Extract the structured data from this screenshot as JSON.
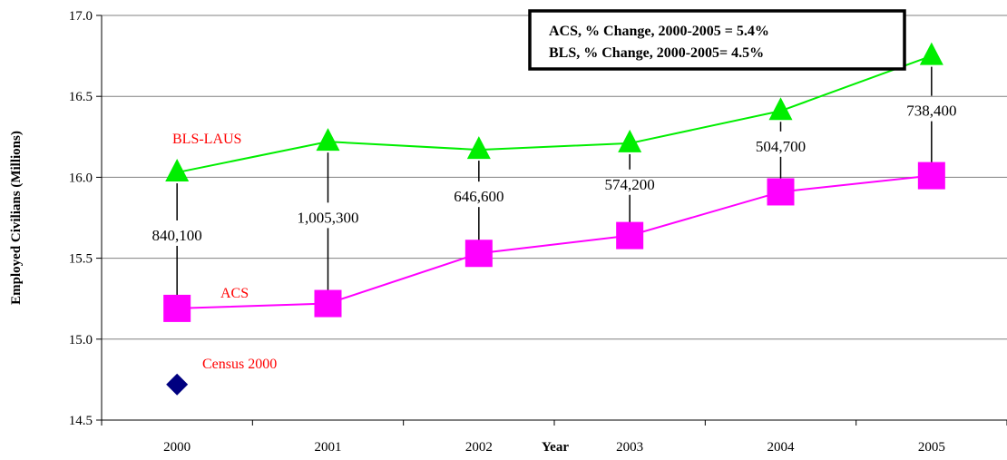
{
  "chart_data": {
    "type": "line",
    "categories": [
      "2000",
      "2001",
      "2002",
      "2003",
      "2004",
      "2005"
    ],
    "xlabel": "Year",
    "ylabel": "Employed Civilians (Millions)",
    "ylim": [
      14.5,
      17.0
    ],
    "yticks": [
      "14.5",
      "15.0",
      "15.5",
      "16.0",
      "16.5",
      "17.0"
    ],
    "grid": "horizontal",
    "series": [
      {
        "name": "BLS-LAUS",
        "color": "#00ee00",
        "marker": "triangle",
        "values": [
          16.03,
          16.22,
          16.17,
          16.21,
          16.41,
          16.75
        ]
      },
      {
        "name": "ACS",
        "color": "#ff00ff",
        "marker": "square",
        "values": [
          15.19,
          15.22,
          15.53,
          15.64,
          15.91,
          16.01
        ]
      }
    ],
    "points": [
      {
        "name": "Census 2000",
        "color": "#000080",
        "marker": "diamond",
        "x": "2000",
        "y": 14.72
      }
    ],
    "differences": [
      "840,100",
      "1,005,300",
      "646,600",
      "574,200",
      "504,700",
      "738,400"
    ],
    "annotation_box": [
      "ACS, % Change, 2000-2005 = 5.4%",
      "BLS, % Change, 2000-2005= 4.5%"
    ],
    "label_color": "#ff0000"
  }
}
